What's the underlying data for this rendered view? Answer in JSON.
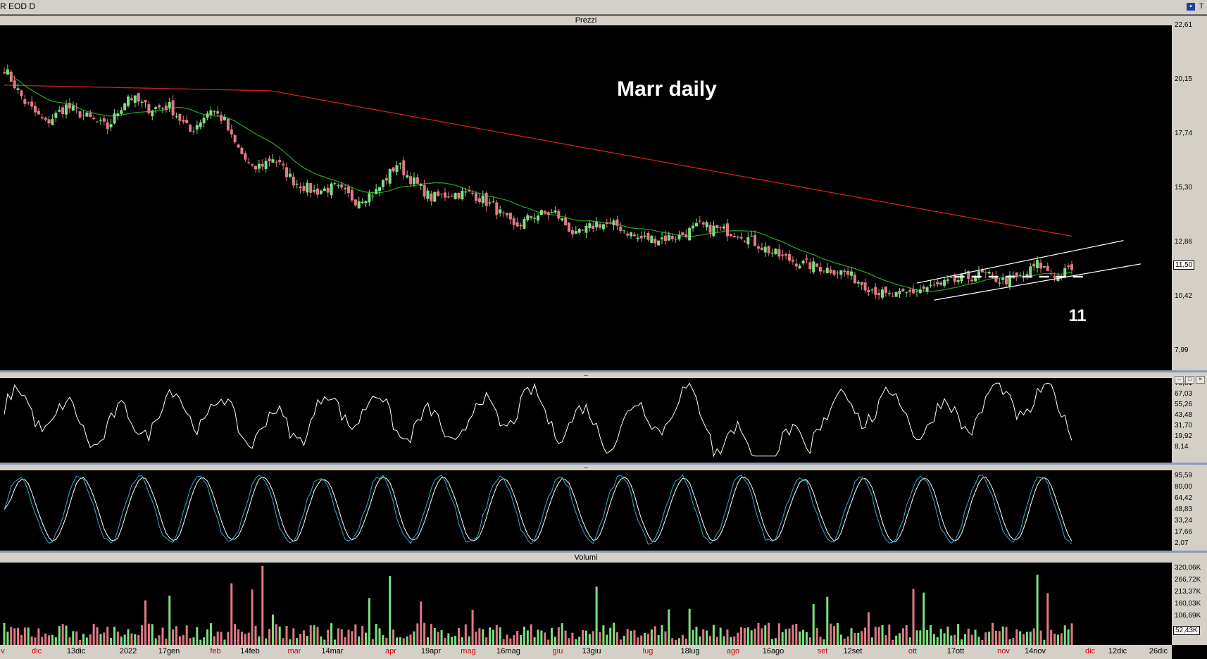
{
  "window": {
    "title": "R EOD D"
  },
  "panels": {
    "price_title": "Prezzi",
    "osc1_title": "--",
    "osc2_title": "--",
    "volume_title": "Volumi"
  },
  "annotations": {
    "chart_title": "Marr daily",
    "level_label": "11"
  },
  "price_axis": {
    "ticks": [
      "22,61",
      "20,15",
      "17,74",
      "15,30",
      "12,86",
      "10,42",
      "7,99"
    ],
    "last": "11,50"
  },
  "osc1_axis": {
    "ticks": [
      "78,81",
      "67,03",
      "55,26",
      "43,48",
      "31,70",
      "19,92",
      "8,14"
    ]
  },
  "osc2_axis": {
    "ticks": [
      "95,59",
      "80,00",
      "64,42",
      "48,83",
      "33,24",
      "17,66",
      "2,07"
    ]
  },
  "volume_axis": {
    "ticks": [
      "320,06K",
      "266,72K",
      "213,37K",
      "160,03K",
      "106,69K"
    ],
    "last": "52,43K"
  },
  "x_labels": [
    {
      "text": "v",
      "color": "#cc0000"
    },
    {
      "text": "dic",
      "color": "#cc0000"
    },
    {
      "text": "13dic",
      "color": "#000000"
    },
    {
      "text": "2022",
      "color": "#000000"
    },
    {
      "text": "17gen",
      "color": "#000000"
    },
    {
      "text": "feb",
      "color": "#cc0000"
    },
    {
      "text": "14feb",
      "color": "#000000"
    },
    {
      "text": "mar",
      "color": "#cc0000"
    },
    {
      "text": "14mar",
      "color": "#000000"
    },
    {
      "text": "apr",
      "color": "#cc0000"
    },
    {
      "text": "19apr",
      "color": "#000000"
    },
    {
      "text": "mag",
      "color": "#cc0000"
    },
    {
      "text": "16mag",
      "color": "#000000"
    },
    {
      "text": "giu",
      "color": "#cc0000"
    },
    {
      "text": "13giu",
      "color": "#000000"
    },
    {
      "text": "lug",
      "color": "#cc0000"
    },
    {
      "text": "18lug",
      "color": "#000000"
    },
    {
      "text": "ago",
      "color": "#cc0000"
    },
    {
      "text": "16ago",
      "color": "#000000"
    },
    {
      "text": "set",
      "color": "#cc0000"
    },
    {
      "text": "12set",
      "color": "#000000"
    },
    {
      "text": "ott",
      "color": "#cc0000"
    },
    {
      "text": "17ott",
      "color": "#000000"
    },
    {
      "text": "nov",
      "color": "#cc0000"
    },
    {
      "text": "14nov",
      "color": "#000000"
    },
    {
      "text": "dic",
      "color": "#cc0000"
    },
    {
      "text": "12dic",
      "color": "#000000"
    },
    {
      "text": "26dic",
      "color": "#000000"
    }
  ],
  "colors": {
    "up": "#7ee07e",
    "down": "#e07a84",
    "ma_short": "#22aa22",
    "ma_long": "#cc2222",
    "osc1": "#ffffff",
    "osc2_k": "#ffffff",
    "osc2_d": "#33aacc",
    "channel": "#ffffff"
  },
  "chart_data": {
    "type": "candlestick",
    "price_range": [
      7.99,
      22.61
    ],
    "anchors": [
      [
        0,
        20.8
      ],
      [
        6,
        19.2
      ],
      [
        12,
        18.2
      ],
      [
        18,
        19.0
      ],
      [
        24,
        18.5
      ],
      [
        30,
        18.0
      ],
      [
        36,
        19.5
      ],
      [
        42,
        18.9
      ],
      [
        48,
        19.0
      ],
      [
        54,
        17.8
      ],
      [
        60,
        18.9
      ],
      [
        64,
        18.3
      ],
      [
        66,
        17.5
      ],
      [
        72,
        16.0
      ],
      [
        78,
        16.6
      ],
      [
        84,
        15.5
      ],
      [
        90,
        15.0
      ],
      [
        96,
        15.2
      ],
      [
        102,
        14.6
      ],
      [
        108,
        15.0
      ],
      [
        114,
        16.3
      ],
      [
        118,
        15.6
      ],
      [
        124,
        14.7
      ],
      [
        130,
        14.9
      ],
      [
        136,
        14.9
      ],
      [
        142,
        14.3
      ],
      [
        148,
        13.3
      ],
      [
        154,
        13.9
      ],
      [
        160,
        14.0
      ],
      [
        166,
        12.9
      ],
      [
        172,
        13.5
      ],
      [
        178,
        13.4
      ],
      [
        184,
        12.8
      ],
      [
        190,
        12.8
      ],
      [
        196,
        12.9
      ],
      [
        202,
        13.4
      ],
      [
        208,
        13.2
      ],
      [
        214,
        13.0
      ],
      [
        220,
        12.4
      ],
      [
        226,
        11.9
      ],
      [
        232,
        11.6
      ],
      [
        238,
        11.4
      ],
      [
        244,
        11.2
      ],
      [
        250,
        10.6
      ],
      [
        256,
        10.1
      ],
      [
        260,
        10.1
      ],
      [
        266,
        10.4
      ],
      [
        272,
        10.6
      ],
      [
        278,
        10.9
      ],
      [
        284,
        11.1
      ],
      [
        290,
        10.8
      ],
      [
        296,
        11.0
      ],
      [
        300,
        11.6
      ],
      [
        306,
        11.0
      ],
      [
        310,
        11.4
      ]
    ],
    "ma_long": {
      "start": 20.0,
      "end": 12.9
    },
    "channel": {
      "upper": [
        [
          265,
          10.7
        ],
        [
          325,
          12.7
        ]
      ],
      "lower": [
        [
          270,
          9.9
        ],
        [
          330,
          11.6
        ]
      ]
    },
    "level": 11,
    "osc1_range": [
      8.14,
      78.81
    ],
    "osc2_range": [
      2.07,
      95.59
    ],
    "volume_max": 320.06
  }
}
